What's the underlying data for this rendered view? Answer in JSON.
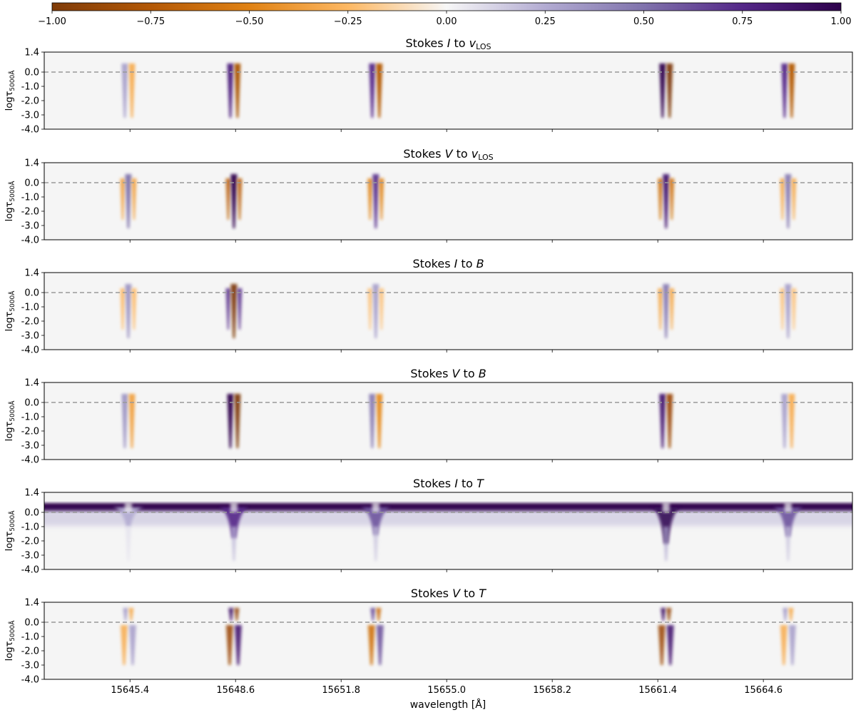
{
  "chart_data": [
    {
      "type": "heatmap",
      "title": "Stokes I to v_LOS",
      "title_parts": [
        "Stokes ",
        "I",
        " to ",
        "v",
        "LOS"
      ],
      "ylabel": "logτ",
      "ylabel_sub": "5000Å",
      "yticks": [
        "1.4",
        "0.0",
        "-1.0",
        "-2.0",
        "-3.0",
        "-4.0"
      ],
      "ylim": [
        1.4,
        -4.0
      ],
      "xlim": [
        15642.8,
        15667.3
      ],
      "reference_line": {
        "y": 0.0,
        "style": "dashed",
        "color": "#999999"
      },
      "features": [
        {
          "x": 15645.35,
          "kind": "dipole",
          "left_sign": 1,
          "right_sign": -1,
          "amp": 0.3
        },
        {
          "x": 15648.55,
          "kind": "dipole",
          "left_sign": 1,
          "right_sign": -1,
          "amp": 0.8
        },
        {
          "x": 15652.85,
          "kind": "dipole",
          "left_sign": 1,
          "right_sign": -1,
          "amp": 0.75
        },
        {
          "x": 15661.65,
          "kind": "dipole",
          "left_sign": 1,
          "right_sign": -1,
          "amp": 1.0
        },
        {
          "x": 15665.35,
          "kind": "dipole",
          "left_sign": 1,
          "right_sign": -1,
          "amp": 0.75
        }
      ]
    },
    {
      "type": "heatmap",
      "title": "Stokes V to v_LOS",
      "title_parts": [
        "Stokes ",
        "V",
        " to ",
        "v",
        "LOS"
      ],
      "ylabel": "logτ",
      "ylabel_sub": "5000Å",
      "yticks": [
        "1.4",
        "0.0",
        "-1.0",
        "-2.0",
        "-3.0",
        "-4.0"
      ],
      "ylim": [
        1.4,
        -4.0
      ],
      "xlim": [
        15642.8,
        15667.3
      ],
      "reference_line": {
        "y": 0.0,
        "style": "dashed",
        "color": "#999999"
      },
      "features": [
        {
          "x": 15645.35,
          "kind": "tripole",
          "center_sign": 1,
          "amp": 0.5
        },
        {
          "x": 15648.55,
          "kind": "tripole",
          "center_sign": 1,
          "amp": 1.0
        },
        {
          "x": 15652.85,
          "kind": "tripole",
          "center_sign": 1,
          "amp": 0.7
        },
        {
          "x": 15661.65,
          "kind": "tripole",
          "center_sign": 1,
          "amp": 0.85
        },
        {
          "x": 15665.35,
          "kind": "tripole",
          "center_sign": 1,
          "amp": 0.45
        }
      ]
    },
    {
      "type": "heatmap",
      "title": "Stokes I to B",
      "title_parts": [
        "Stokes ",
        "I",
        " to ",
        "B",
        ""
      ],
      "ylabel": "logτ",
      "ylabel_sub": "5000Å",
      "yticks": [
        "1.4",
        "0.0",
        "-1.0",
        "-2.0",
        "-3.0",
        "-4.0"
      ],
      "ylim": [
        1.4,
        -4.0
      ],
      "xlim": [
        15642.8,
        15667.3
      ],
      "reference_line": {
        "y": 0.0,
        "style": "dashed",
        "color": "#999999"
      },
      "features": [
        {
          "x": 15645.35,
          "kind": "tripole",
          "center_sign": 1,
          "amp": 0.35
        },
        {
          "x": 15648.55,
          "kind": "tripole",
          "center_sign": -1,
          "amp": 1.0
        },
        {
          "x": 15652.85,
          "kind": "tripole",
          "center_sign": 1,
          "amp": 0.3
        },
        {
          "x": 15661.65,
          "kind": "tripole",
          "center_sign": 1,
          "amp": 0.45
        },
        {
          "x": 15665.35,
          "kind": "tripole",
          "center_sign": 1,
          "amp": 0.3
        }
      ]
    },
    {
      "type": "heatmap",
      "title": "Stokes V to B",
      "title_parts": [
        "Stokes ",
        "V",
        " to ",
        "B",
        ""
      ],
      "ylabel": "logτ",
      "ylabel_sub": "5000Å",
      "yticks": [
        "1.4",
        "0.0",
        "-1.0",
        "-2.0",
        "-3.0",
        "-4.0"
      ],
      "ylim": [
        1.4,
        -4.0
      ],
      "xlim": [
        15642.8,
        15667.3
      ],
      "reference_line": {
        "y": 0.0,
        "style": "dashed",
        "color": "#999999"
      },
      "features": [
        {
          "x": 15645.35,
          "kind": "dipole",
          "left_sign": 1,
          "right_sign": -1,
          "amp": 0.35
        },
        {
          "x": 15648.55,
          "kind": "dipole",
          "left_sign": 1,
          "right_sign": -1,
          "amp": 1.0
        },
        {
          "x": 15652.85,
          "kind": "dipole",
          "left_sign": 1,
          "right_sign": -1,
          "amp": 0.45
        },
        {
          "x": 15661.65,
          "kind": "dipole",
          "left_sign": 1,
          "right_sign": -1,
          "amp": 0.85
        },
        {
          "x": 15665.35,
          "kind": "dipole",
          "left_sign": 1,
          "right_sign": -1,
          "amp": 0.3
        }
      ]
    },
    {
      "type": "heatmap",
      "title": "Stokes I to T",
      "title_parts": [
        "Stokes ",
        "I",
        " to ",
        "T",
        ""
      ],
      "ylabel": "logτ",
      "ylabel_sub": "5000Å",
      "yticks": [
        "1.4",
        "0.0",
        "-1.0",
        "-2.0",
        "-3.0",
        "-4.0"
      ],
      "ylim": [
        1.4,
        -4.0
      ],
      "xlim": [
        15642.8,
        15667.3
      ],
      "reference_line": {
        "y": 0.0,
        "style": "dashed",
        "color": "#999999"
      },
      "continuum_band": {
        "tau": 0.35,
        "value": 1.0
      },
      "features": [
        {
          "x": 15645.35,
          "kind": "dip",
          "amp": 0.25,
          "depth": 1.0
        },
        {
          "x": 15648.55,
          "kind": "dip",
          "amp": 0.75,
          "depth": 1.8
        },
        {
          "x": 15652.85,
          "kind": "dip",
          "amp": 0.6,
          "depth": 1.6
        },
        {
          "x": 15661.65,
          "kind": "dip",
          "amp": 0.95,
          "depth": 2.2
        },
        {
          "x": 15665.35,
          "kind": "dip",
          "amp": 0.6,
          "depth": 1.7
        }
      ]
    },
    {
      "type": "heatmap",
      "title": "Stokes V to T",
      "title_parts": [
        "Stokes ",
        "V",
        " to ",
        "T",
        ""
      ],
      "ylabel": "logτ",
      "ylabel_sub": "5000Å",
      "yticks": [
        "1.4",
        "0.0",
        "-1.0",
        "-2.0",
        "-3.0",
        "-4.0"
      ],
      "ylim": [
        1.4,
        -4.0
      ],
      "xlim": [
        15642.8,
        15667.3
      ],
      "xlabel": "wavelength [Å]",
      "xticks": [
        15645.4,
        15648.6,
        15651.8,
        15655.0,
        15658.2,
        15661.4,
        15664.6
      ],
      "xtick_labels": [
        "15645.4",
        "15648.6",
        "15651.8",
        "15655.0",
        "15658.2",
        "15661.4",
        "15664.6"
      ],
      "reference_line": {
        "y": 0.0,
        "style": "dashed",
        "color": "#999999"
      },
      "features": [
        {
          "x": 15645.35,
          "kind": "dipole_flip",
          "amp": 0.35
        },
        {
          "x": 15648.55,
          "kind": "dipole_flip",
          "amp": 1.0
        },
        {
          "x": 15652.85,
          "kind": "dipole_flip",
          "amp": 0.7
        },
        {
          "x": 15661.65,
          "kind": "dipole_flip",
          "amp": 1.0
        },
        {
          "x": 15665.35,
          "kind": "dipole_flip",
          "amp": 0.35
        }
      ]
    }
  ],
  "colorbar": {
    "colormap": "PuOr",
    "range": [
      -1.0,
      1.0
    ],
    "ticks": [
      -1.0,
      -0.75,
      -0.5,
      -0.25,
      0.0,
      0.25,
      0.5,
      0.75,
      1.0
    ],
    "tick_labels": [
      "−1.00",
      "−0.75",
      "−0.50",
      "−0.25",
      "0.00",
      "0.25",
      "0.50",
      "0.75",
      "1.00"
    ],
    "colors": {
      "negative": "#7f3b08",
      "mid_neg": "#f1a340",
      "zero": "#f7f7f7",
      "mid_pos": "#998ec3",
      "positive": "#2d004b"
    }
  },
  "background_color": "#f5f5f5"
}
